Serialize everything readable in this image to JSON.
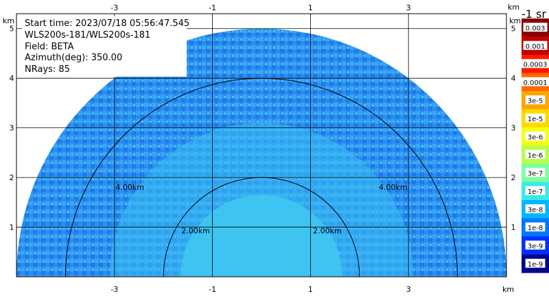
{
  "info": {
    "start_time": "Start time: 2023/07/18 05:56:47.545",
    "instrument": "WLS200s-181/WLS200s-181",
    "field": "Field: BETA",
    "azimuth": "Azimuth(deg): 350.00",
    "nrays": "NRays: 85"
  },
  "colorbar": {
    "units": "-1 sr",
    "labels": [
      "0.003",
      "0.001",
      "0.0003",
      "0.0001",
      "3e-5",
      "1e-5",
      "3e-6",
      "1e-6",
      "3e-7",
      "1e-7",
      "3e-8",
      "1e-8",
      "3e-9",
      "1e-9"
    ],
    "colors": [
      "#8b0000",
      "#c40000",
      "#ff1a00",
      "#ff6a00",
      "#ffa500",
      "#ffd800",
      "#f2ff1a",
      "#b8ff4a",
      "#7dffa0",
      "#3fe8e8",
      "#00b8ff",
      "#0078ff",
      "#0030ff",
      "#00008b"
    ]
  },
  "chart_data": {
    "type": "heatmap",
    "subtype": "rhi_polar_sector",
    "field": "BETA",
    "azimuth_deg": 350.0,
    "nrays": 85,
    "x_unit": "km",
    "y_unit": "km",
    "xlim": [
      -5.0,
      5.0
    ],
    "ylim": [
      0.0,
      5.3
    ],
    "x_ticks": [
      -3,
      -1,
      1,
      3
    ],
    "y_ticks": [
      1,
      2,
      3,
      4,
      5
    ],
    "elevation_range_deg": [
      0,
      180
    ],
    "max_range_km": 5.0,
    "range_rings_km": [
      2.0,
      4.0
    ],
    "ring_labels": [
      "2.00km",
      "2.00km",
      "4.00km",
      "4.00km"
    ],
    "grid": true,
    "colorscale": "log",
    "clim": [
      1e-09,
      0.003
    ],
    "dominant_levels": [
      "1e-7",
      "3e-8",
      "1e-8"
    ]
  }
}
